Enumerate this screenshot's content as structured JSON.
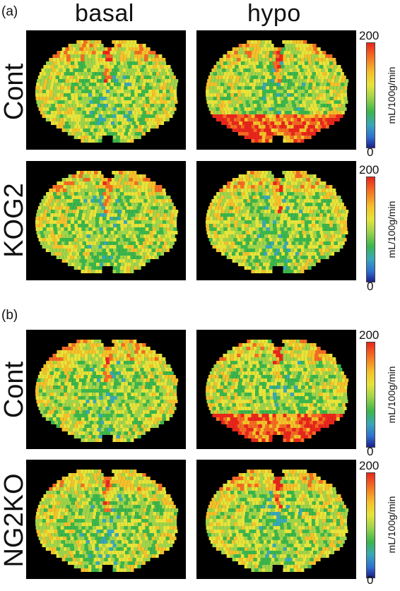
{
  "panels": [
    {
      "label": "(a)",
      "col_headers": [
        "basal",
        "hypo"
      ],
      "rows": [
        {
          "label": "Cont"
        },
        {
          "label": "KOG2"
        }
      ]
    },
    {
      "label": "(b)",
      "col_headers": [
        "",
        ""
      ],
      "rows": [
        {
          "label": "Cont"
        },
        {
          "label": "NG2KO"
        }
      ]
    }
  ],
  "colorbar": {
    "max": "200",
    "min": "0",
    "unit": "mL/100g/min",
    "colors": [
      "#e8261c",
      "#f46a22",
      "#f4c02a",
      "#e6e33a",
      "#9fd44a",
      "#3cb64c",
      "#38a8b8",
      "#2f6fd0",
      "#1a1f8a"
    ]
  }
}
